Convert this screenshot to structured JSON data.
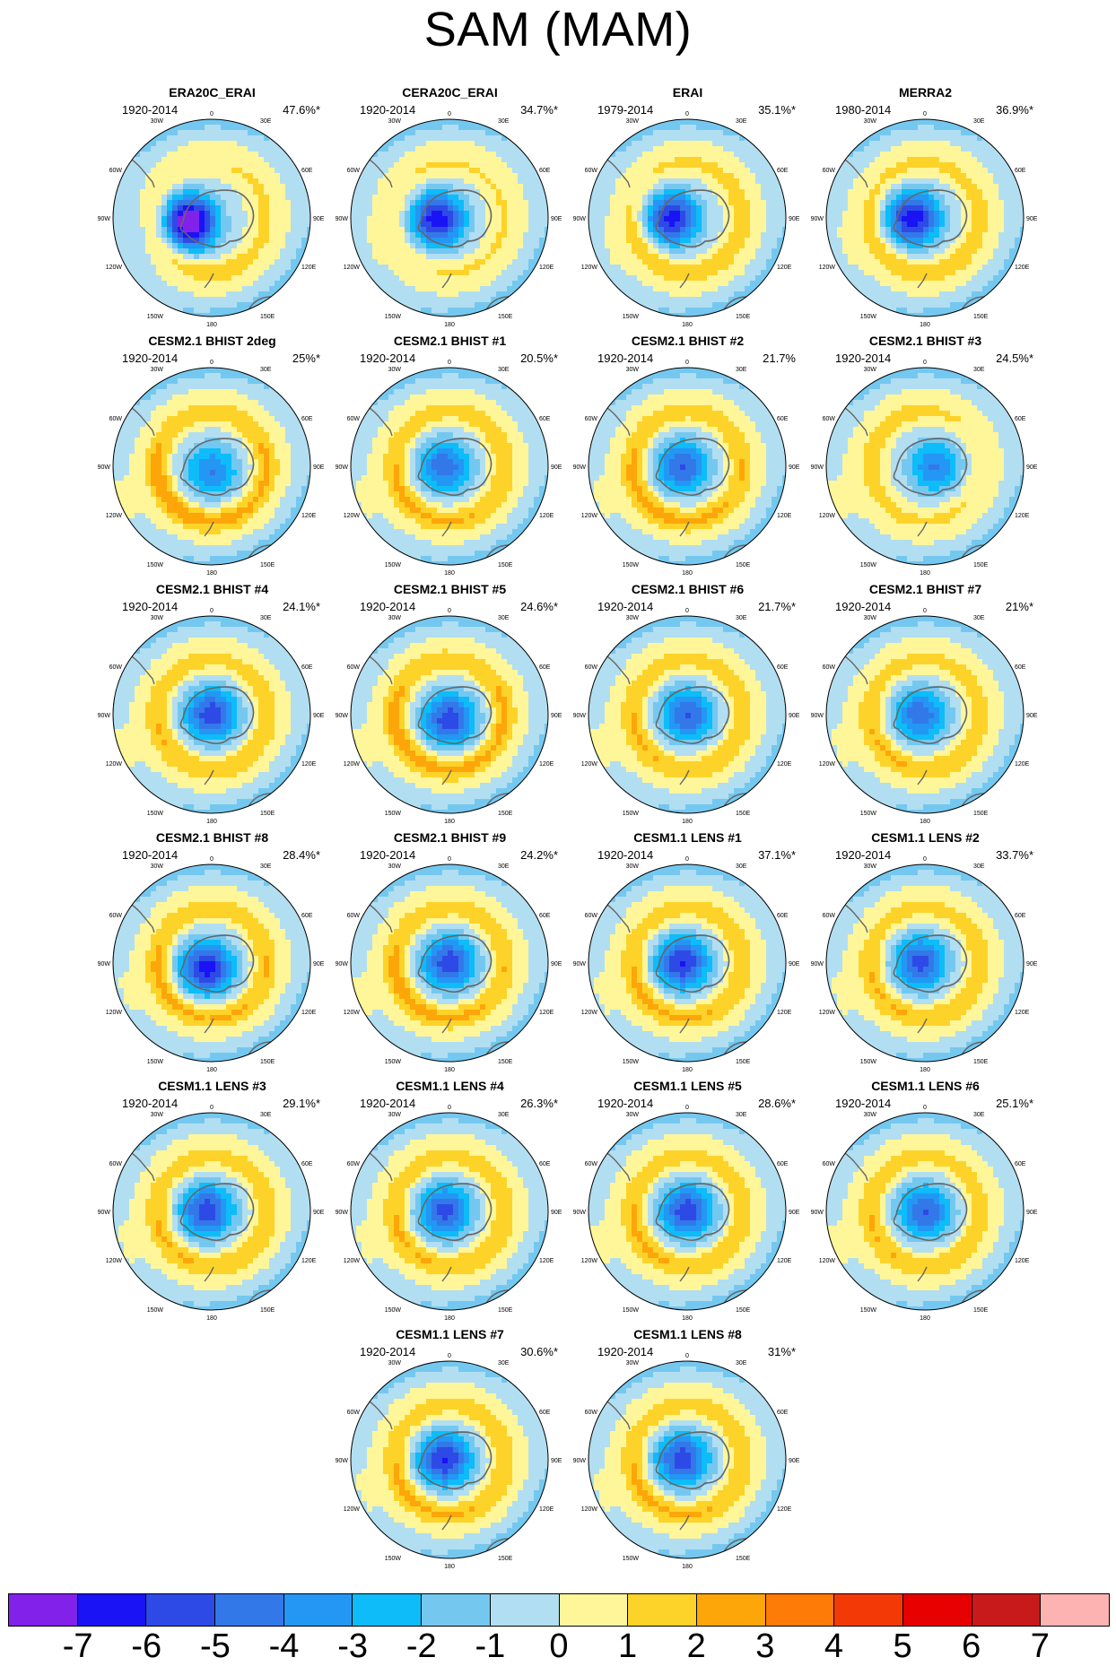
{
  "title": "SAM (MAM)",
  "panels": [
    {
      "title": "ERA20C_ERAI",
      "years": "1920-2014",
      "percent": "47.6%*",
      "strength": 1.25,
      "lowX": -0.22,
      "lowY": 0.05,
      "ring": [
        1.0,
        0.3,
        0.1
      ]
    },
    {
      "title": "CERA20C_ERAI",
      "years": "1920-2014",
      "percent": "34.7%*",
      "strength": 1.0,
      "lowX": -0.12,
      "lowY": 0.02,
      "ring": [
        0.3,
        0.2,
        0.3
      ]
    },
    {
      "title": "ERAI",
      "years": "1979-2014",
      "percent": "35.1%*",
      "strength": 0.95,
      "lowX": -0.15,
      "lowY": 0.0,
      "ring": [
        1.1,
        0.7,
        0.4
      ]
    },
    {
      "title": "MERRA2",
      "years": "1980-2014",
      "percent": "36.9%*",
      "strength": 1.0,
      "lowX": -0.12,
      "lowY": 0.0,
      "ring": [
        1.0,
        0.6,
        0.5
      ]
    },
    {
      "title": "CESM2.1 BHIST 2deg",
      "years": "1920-2014",
      "percent": "25%*",
      "strength": 0.6,
      "lowX": 0.0,
      "lowY": 0.05,
      "ring": [
        1.8,
        1.4,
        0.9
      ]
    },
    {
      "title": "CESM2.1 BHIST #1",
      "years": "1920-2014",
      "percent": "20.5%*",
      "strength": 0.7,
      "lowX": -0.05,
      "lowY": 0.0,
      "ring": [
        1.4,
        1.0,
        0.8
      ]
    },
    {
      "title": "CESM2.1 BHIST #2",
      "years": "1920-2014",
      "percent": "21.7%",
      "strength": 0.75,
      "lowX": -0.05,
      "lowY": 0.0,
      "ring": [
        1.5,
        1.2,
        0.9
      ]
    },
    {
      "title": "CESM2.1 BHIST #3",
      "years": "1920-2014",
      "percent": "24.5%*",
      "strength": 0.6,
      "lowX": 0.1,
      "lowY": 0.0,
      "ring": [
        0.4,
        0.3,
        0.6
      ]
    },
    {
      "title": "CESM2.1 BHIST #4",
      "years": "1920-2014",
      "percent": "24.1%*",
      "strength": 0.85,
      "lowX": 0.0,
      "lowY": 0.0,
      "ring": [
        1.2,
        1.0,
        0.7
      ]
    },
    {
      "title": "CESM2.1 BHIST #5",
      "years": "1920-2014",
      "percent": "24.6%*",
      "strength": 0.85,
      "lowX": 0.0,
      "lowY": 0.05,
      "ring": [
        1.6,
        1.5,
        1.1
      ]
    },
    {
      "title": "CESM2.1 BHIST #6",
      "years": "1920-2014",
      "percent": "21.7%*",
      "strength": 0.75,
      "lowX": 0.0,
      "lowY": 0.0,
      "ring": [
        1.2,
        1.0,
        0.8
      ]
    },
    {
      "title": "CESM2.1 BHIST #7",
      "years": "1920-2014",
      "percent": "21%*",
      "strength": 0.7,
      "lowX": -0.05,
      "lowY": 0.0,
      "ring": [
        1.3,
        0.8,
        0.6
      ]
    },
    {
      "title": "CESM2.1 BHIST #8",
      "years": "1920-2014",
      "percent": "28.4%*",
      "strength": 0.95,
      "lowX": -0.05,
      "lowY": 0.05,
      "ring": [
        1.5,
        1.2,
        0.9
      ]
    },
    {
      "title": "CESM2.1 BHIST #9",
      "years": "1920-2014",
      "percent": "24.2%*",
      "strength": 0.85,
      "lowX": 0.0,
      "lowY": 0.0,
      "ring": [
        1.5,
        1.2,
        0.9
      ]
    },
    {
      "title": "CESM1.1 LENS #1",
      "years": "1920-2014",
      "percent": "37.1%*",
      "strength": 0.9,
      "lowX": -0.05,
      "lowY": 0.0,
      "ring": [
        1.4,
        1.1,
        0.8
      ]
    },
    {
      "title": "CESM1.1 LENS #2",
      "years": "1920-2014",
      "percent": "33.7%*",
      "strength": 0.8,
      "lowX": -0.05,
      "lowY": 0.0,
      "ring": [
        1.3,
        0.9,
        0.7
      ]
    },
    {
      "title": "CESM1.1 LENS #3",
      "years": "1920-2014",
      "percent": "29.1%*",
      "strength": 0.85,
      "lowX": -0.05,
      "lowY": 0.0,
      "ring": [
        1.3,
        1.0,
        0.8
      ]
    },
    {
      "title": "CESM1.1 LENS #4",
      "years": "1920-2014",
      "percent": "26.3%*",
      "strength": 0.8,
      "lowX": -0.05,
      "lowY": 0.0,
      "ring": [
        1.3,
        1.0,
        0.8
      ]
    },
    {
      "title": "CESM1.1 LENS #5",
      "years": "1920-2014",
      "percent": "28.6%*",
      "strength": 0.85,
      "lowX": 0.0,
      "lowY": 0.0,
      "ring": [
        1.3,
        1.0,
        0.8
      ]
    },
    {
      "title": "CESM1.1 LENS #6",
      "years": "1920-2014",
      "percent": "25.1%*",
      "strength": 0.75,
      "lowX": 0.0,
      "lowY": 0.0,
      "ring": [
        1.2,
        0.9,
        0.7
      ]
    },
    {
      "title": "CESM1.1 LENS #7",
      "years": "1920-2014",
      "percent": "30.6%*",
      "strength": 0.9,
      "lowX": -0.05,
      "lowY": 0.0,
      "ring": [
        1.4,
        1.1,
        0.8
      ]
    },
    {
      "title": "CESM1.1 LENS #8",
      "years": "1920-2014",
      "percent": "31%*",
      "strength": 0.85,
      "lowX": -0.05,
      "lowY": 0.0,
      "ring": [
        1.4,
        1.1,
        0.8
      ]
    }
  ],
  "map_labels": {
    "lon_top": "0",
    "lon_bottom": "180",
    "upper_left": "30W",
    "upper_right": "30E",
    "left_upper": "60W",
    "right_upper": "60E",
    "left_mid": "90W",
    "right_mid": "90E",
    "left_lower": "120W",
    "right_lower": "120E",
    "bottom_left": "150W",
    "bottom_right": "150E"
  },
  "colorbar": {
    "colors": [
      "#8221ea",
      "#1a13f5",
      "#2e4ae6",
      "#3378e8",
      "#2496f4",
      "#0dbcf8",
      "#74c8f0",
      "#b2def1",
      "#fff69a",
      "#fdd329",
      "#fda60a",
      "#fd7b06",
      "#f33a06",
      "#e60000",
      "#c81a1a",
      "#feb3b3"
    ],
    "labels": [
      "-7",
      "-6",
      "-5",
      "-4",
      "-3",
      "-2",
      "-1",
      "0",
      "1",
      "2",
      "3",
      "4",
      "5",
      "6",
      "7"
    ]
  }
}
